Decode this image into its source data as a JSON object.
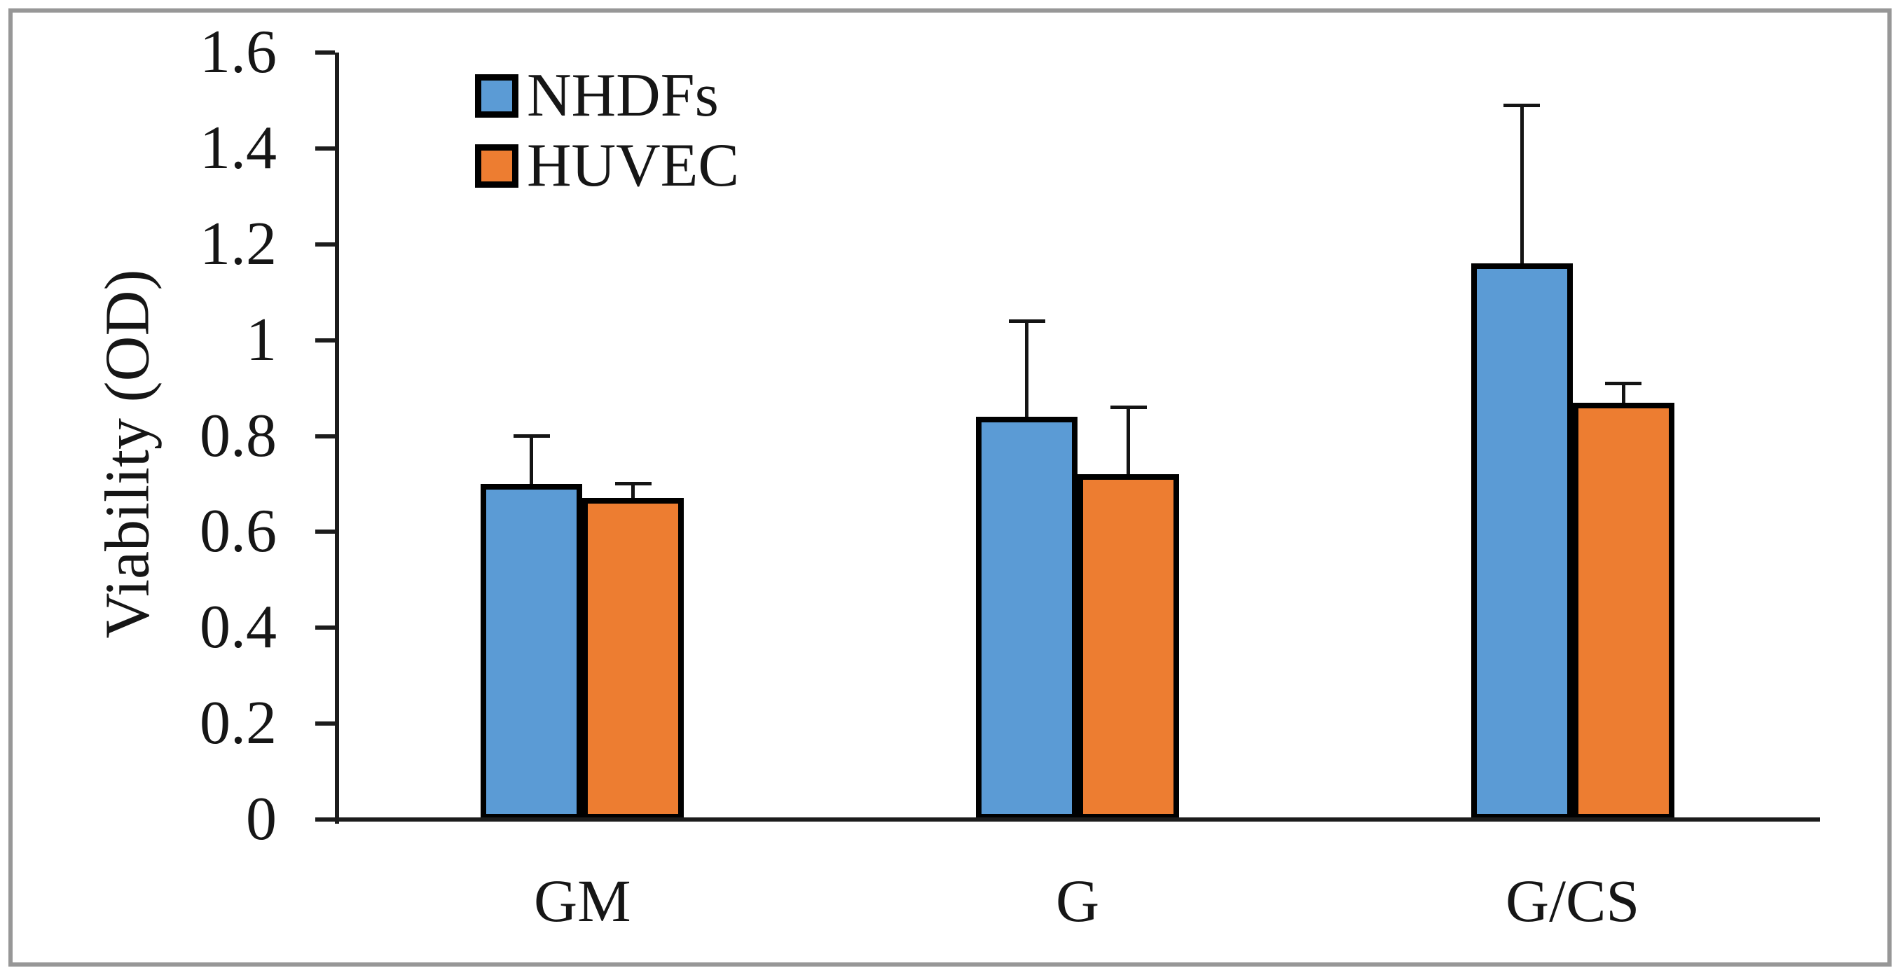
{
  "figure": {
    "frame_color": "#979797",
    "background": "#ffffff",
    "text_color": "#161616",
    "axis_color": "#1c1c1c"
  },
  "chart_data": {
    "type": "bar",
    "title": "",
    "ylabel": "Viability (OD)",
    "xlabel": "",
    "categories": [
      "GM",
      "G",
      "G/CS"
    ],
    "series": [
      {
        "name": "NHDFs",
        "color": "#5B9BD5",
        "values": [
          0.7,
          0.84,
          1.16
        ],
        "errors_upper": [
          0.1,
          0.2,
          0.33
        ]
      },
      {
        "name": "HUVEC",
        "color": "#ED7D31",
        "values": [
          0.67,
          0.72,
          0.87
        ],
        "errors_upper": [
          0.03,
          0.14,
          0.04
        ]
      }
    ],
    "ylim": [
      0,
      1.6
    ],
    "yticks": [
      0,
      0.2,
      0.4,
      0.6,
      0.8,
      1,
      1.2,
      1.4,
      1.6
    ],
    "ytick_labels": [
      "0",
      "0.2",
      "0.4",
      "0.6",
      "0.8",
      "1",
      "1.2",
      "1.4",
      "1.6"
    ],
    "grid": false,
    "legend": {
      "position": "top-left",
      "items": [
        "NHDFs",
        "HUVEC"
      ]
    },
    "error_bars": "upper-only",
    "bar_edge_color": "#000000"
  }
}
